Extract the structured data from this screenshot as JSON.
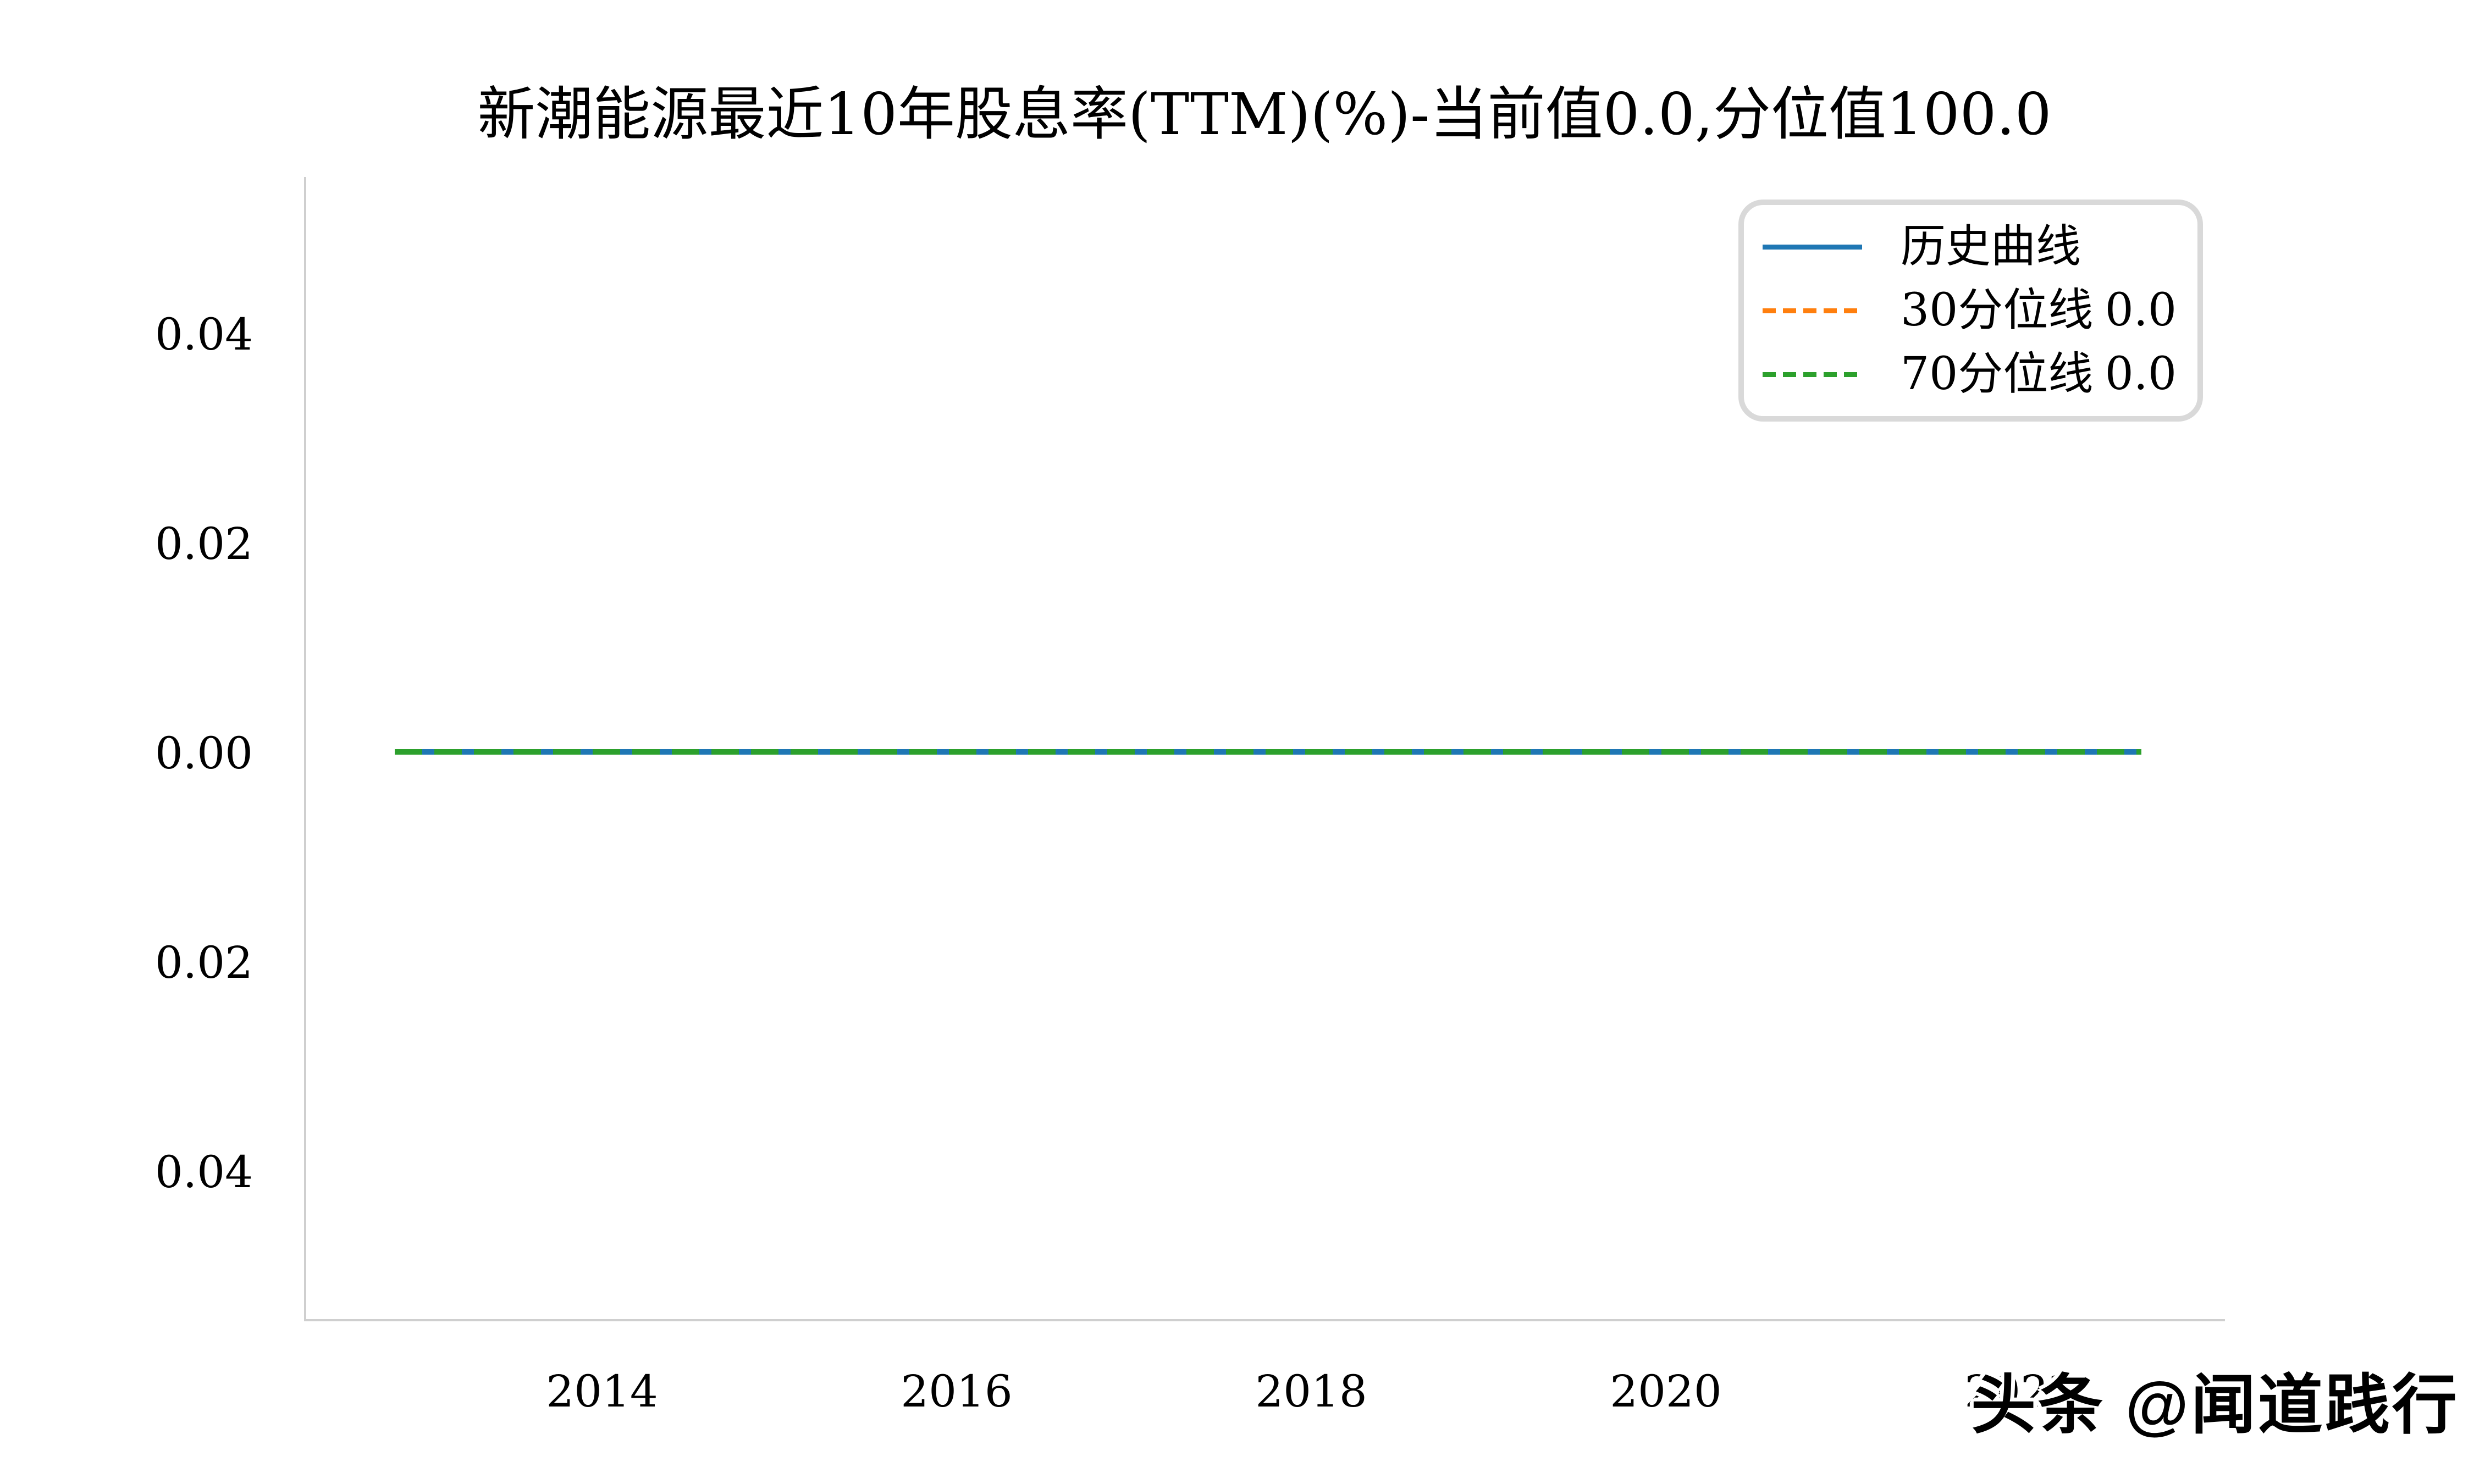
{
  "title": "新潮能源最近10年股息率(TTM)(%)-当前值0.0,分位值100.0",
  "watermark": "头条 @闻道践行",
  "legend": {
    "items": [
      {
        "name": "历史曲线",
        "value": "",
        "color": "#1f77b4",
        "style": "solid"
      },
      {
        "name": "30分位线",
        "value": "0.0",
        "color": "#ff7f0e",
        "style": "dashed"
      },
      {
        "name": "70分位线",
        "value": "0.0",
        "color": "#2ca02c",
        "style": "dashed"
      }
    ]
  },
  "chart_data": {
    "type": "line",
    "title": "新潮能源最近10年股息率(TTM)(%)-当前值0.0,分位值100.0",
    "current_value": 0.0,
    "percentile_value": 100.0,
    "xlabel": "",
    "ylabel": "",
    "xtick_labels": [
      "2014",
      "2016",
      "2018",
      "2020",
      "2022"
    ],
    "ytick_labels": [
      "0.04",
      "0.02",
      "0.00",
      "0.02",
      "0.04"
    ],
    "ytick_values": [
      0.04,
      0.02,
      0.0,
      -0.02,
      -0.04
    ],
    "ylim": [
      -0.055,
      0.055
    ],
    "x_range_years": [
      2012.8,
      2022.8
    ],
    "grid": false,
    "legend_position": "upper right",
    "series": [
      {
        "name": "历史曲线",
        "color": "#1f77b4",
        "style": "solid",
        "x": [
          2012.8,
          2022.8
        ],
        "values": [
          0.0,
          0.0
        ]
      },
      {
        "name": "30分位线",
        "color": "#ff7f0e",
        "style": "dashed",
        "x": [
          2012.8,
          2022.8
        ],
        "values": [
          0.0,
          0.0
        ]
      },
      {
        "name": "70分位线",
        "color": "#2ca02c",
        "style": "dashed",
        "x": [
          2012.8,
          2022.8
        ],
        "values": [
          0.0,
          0.0
        ]
      }
    ],
    "colors": {
      "history": "#1f77b4",
      "p30": "#ff7f0e",
      "p70": "#2ca02c",
      "spine": "#cfcfcf"
    }
  }
}
